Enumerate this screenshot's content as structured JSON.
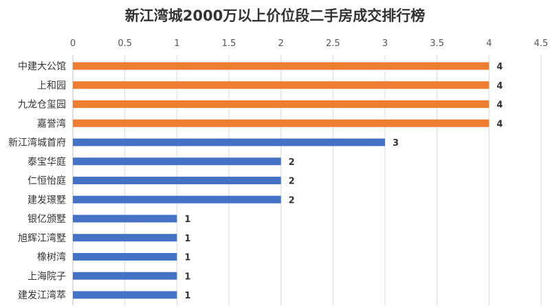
{
  "chart_data": {
    "type": "bar",
    "orientation": "horizontal",
    "title": "新江湾城2000万以上价位段二手房成交排行榜",
    "xlabel": "",
    "ylabel": "",
    "xlim": [
      0,
      4.5
    ],
    "ticks": [
      "0",
      "0.5",
      "1",
      "1.5",
      "2",
      "2.5",
      "3",
      "3.5",
      "4",
      "4.5"
    ],
    "tick_values": [
      0,
      0.5,
      1,
      1.5,
      2,
      2.5,
      3,
      3.5,
      4,
      4.5
    ],
    "grid": true,
    "axis_position": "top",
    "categories": [
      "中建大公馆",
      "上和园",
      "九龙仓玺园",
      "嘉誉湾",
      "新江湾城首府",
      "泰宝华庭",
      "仁恒怡庭",
      "建发璟墅",
      "银亿颁墅",
      "旭辉江湾墅",
      "橡树湾",
      "上海院子",
      "建发江湾萃"
    ],
    "values": [
      4,
      4,
      4,
      4,
      3,
      2,
      2,
      2,
      1,
      1,
      1,
      1,
      1
    ],
    "value_labels": [
      "4",
      "4",
      "4",
      "4",
      "3",
      "2",
      "2",
      "2",
      "1",
      "1",
      "1",
      "1",
      "1"
    ],
    "colors": {
      "highlight": "#ED7D31",
      "normal": "#4472C4"
    },
    "highlight_count": 4
  }
}
